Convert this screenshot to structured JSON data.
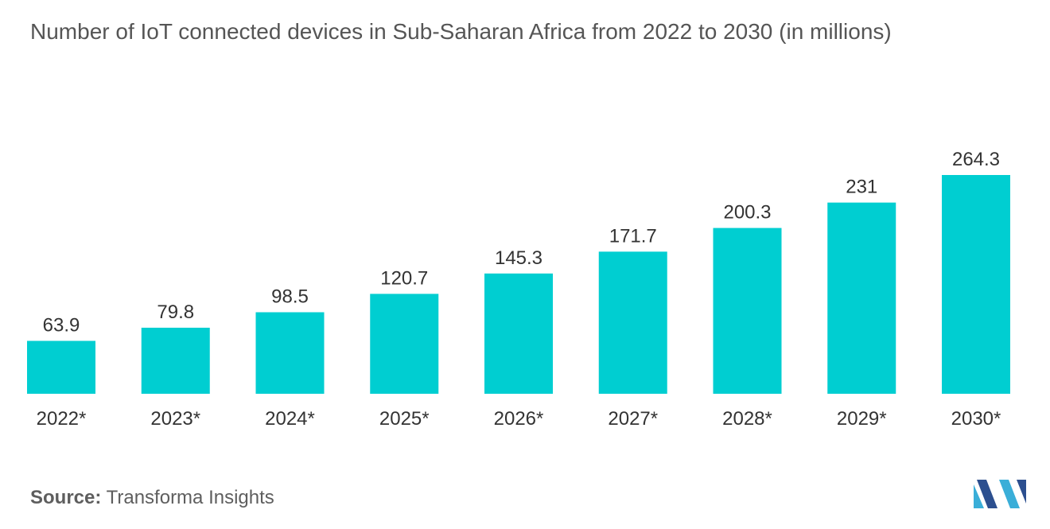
{
  "chart_data": {
    "type": "bar",
    "title": "Number of IoT connected devices in Sub-Saharan Africa from 2022 to 2030 (in millions)",
    "categories": [
      "2022*",
      "2023*",
      "2024*",
      "2025*",
      "2026*",
      "2027*",
      "2028*",
      "2029*",
      "2030*"
    ],
    "values": [
      63.9,
      79.8,
      98.5,
      120.7,
      145.3,
      171.7,
      200.3,
      231,
      264.3
    ],
    "value_labels": [
      "63.9",
      "79.8",
      "98.5",
      "120.7",
      "145.3",
      "171.7",
      "200.3",
      "231",
      "264.3"
    ],
    "xlabel": "",
    "ylabel": "",
    "grid": false,
    "legend": "none",
    "bar_color": "#00ced1"
  },
  "source": {
    "label": "Source:",
    "text": "Transforma Insights"
  },
  "logo": {
    "icon": "mordor-intelligence-logo-icon",
    "colors": [
      "#2c4f8f",
      "#3aaed8"
    ]
  }
}
